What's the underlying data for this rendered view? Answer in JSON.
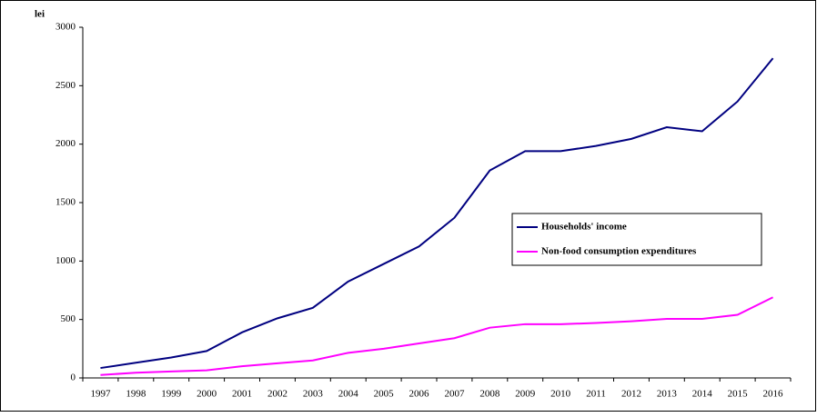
{
  "chart_data": {
    "type": "line",
    "y_label": "lei",
    "categories": [
      "1997",
      "1998",
      "1999",
      "2000",
      "2001",
      "2002",
      "2003",
      "2004",
      "2005",
      "2006",
      "2007",
      "2008",
      "2009",
      "2010",
      "2011",
      "2012",
      "2013",
      "2014",
      "2015",
      "2016"
    ],
    "series": [
      {
        "name": "Households' income",
        "color": "#000080",
        "values": [
          85,
          130,
          175,
          230,
          390,
          510,
          600,
          825,
          975,
          1125,
          1370,
          1775,
          1940,
          1940,
          1985,
          2045,
          2145,
          2110,
          2365,
          2735
        ]
      },
      {
        "name": "Non-food consumption expenditures",
        "color": "#ff00ff",
        "values": [
          25,
          45,
          55,
          65,
          100,
          125,
          150,
          215,
          250,
          295,
          340,
          430,
          460,
          460,
          470,
          485,
          505,
          505,
          540,
          690
        ]
      }
    ],
    "ylim": [
      0,
      3000
    ],
    "yticks": [
      0,
      500,
      1000,
      1500,
      2000,
      2500,
      3000
    ],
    "grid": false,
    "legend": "right"
  }
}
